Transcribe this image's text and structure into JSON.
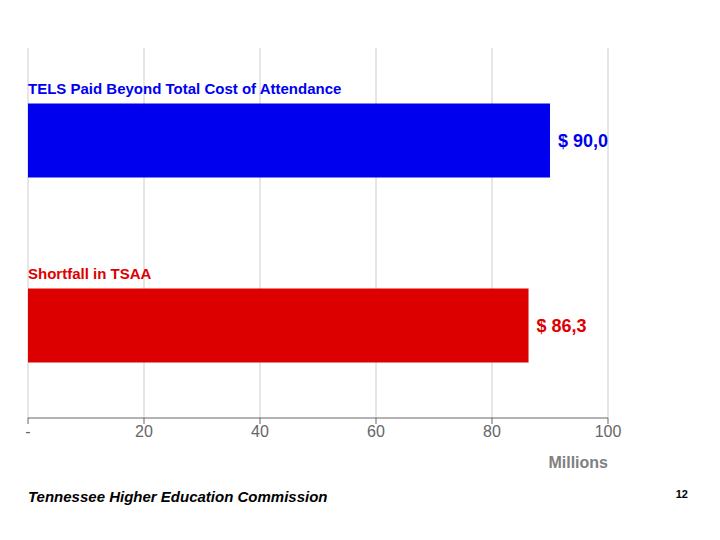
{
  "chart_data": {
    "type": "bar",
    "orientation": "horizontal",
    "categories": [
      "TELS Paid Beyond Total Cost of Attendance",
      "Shortfall in TSAA"
    ],
    "values": [
      90.0,
      86.3
    ],
    "value_labels": [
      "$ 90,0",
      "$ 86,3"
    ],
    "colors": [
      "#0000EE",
      "#DD0000"
    ],
    "data_labels": true,
    "xlim": [
      0,
      100
    ],
    "xticks": [
      {
        "value": 0,
        "label": "-"
      },
      20,
      40,
      60,
      80,
      100
    ],
    "xlabel": "Millions",
    "grid": true,
    "annotations": [
      "Tennessee Higher Education Commission",
      "12"
    ]
  }
}
